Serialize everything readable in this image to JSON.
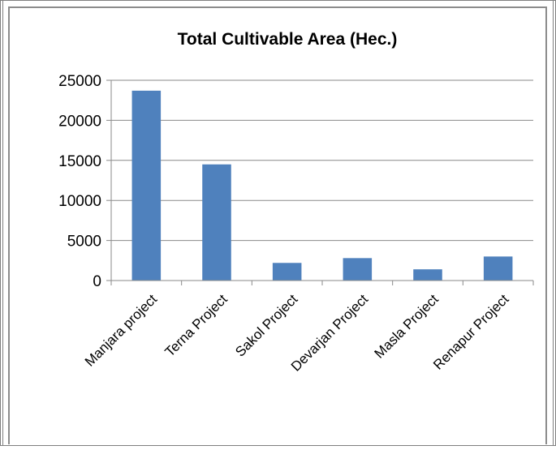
{
  "chart_data": {
    "type": "bar",
    "title": "Total Cultivable Area (Hec.)",
    "xlabel": "",
    "ylabel": "",
    "categories": [
      "Manjara project",
      "Terna Project",
      "Sakol Project",
      "Devarjan Project",
      "Masla Project",
      "Renapur Project"
    ],
    "values": [
      23700,
      14500,
      2200,
      2800,
      1400,
      3000
    ],
    "ylim": [
      0,
      25000
    ],
    "yticks": [
      0,
      5000,
      10000,
      15000,
      20000,
      25000
    ],
    "ytick_labels": [
      "0",
      "5000",
      "10000",
      "15000",
      "20000",
      "25000"
    ],
    "grid": true,
    "legend": "none",
    "bar_color": "#4f81bd",
    "grid_color": "#8a8a8a"
  }
}
